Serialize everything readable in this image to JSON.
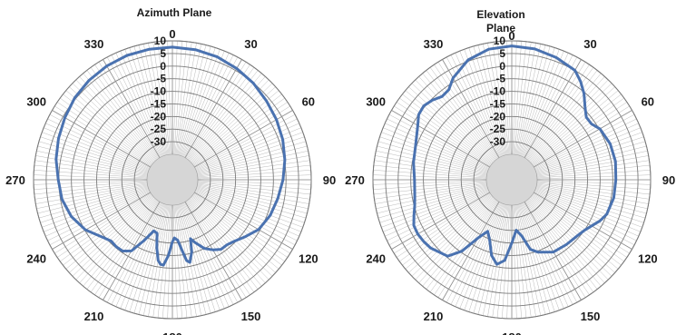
{
  "chart_data": [
    {
      "type": "polar-line",
      "title": "Azimuth Plane",
      "title_lines": [
        "Azimuth Plane"
      ],
      "angle_ticks": [
        "0",
        "30",
        "60",
        "90",
        "120",
        "150",
        "180",
        "210",
        "240",
        "270",
        "300",
        "330"
      ],
      "radial_ticks": [
        "10",
        "5",
        "0",
        "-5",
        "-10",
        "-15",
        "-20",
        "-25",
        "-30"
      ],
      "rlim": [
        -35,
        10
      ],
      "angle_ticks_deg": [
        0,
        30,
        60,
        90,
        120,
        150,
        180,
        210,
        240,
        270,
        300,
        330
      ],
      "radial_rings_db": [
        10,
        5,
        0,
        -5,
        -10,
        -15,
        -20,
        -25,
        -30
      ],
      "grid": true,
      "series_color": "#4a72b0",
      "series": [
        {
          "angles_deg": [
            0,
            10,
            20,
            30,
            40,
            50,
            60,
            70,
            80,
            90,
            100,
            110,
            120,
            128,
            135,
            140,
            145,
            150,
            155,
            160,
            163,
            165,
            168,
            170,
            172,
            175,
            178,
            180,
            183,
            186,
            188,
            190,
            193,
            196,
            200,
            205,
            210,
            215,
            220,
            225,
            230,
            240,
            250,
            260,
            270,
            280,
            290,
            300,
            310,
            320,
            330,
            340,
            350,
            360
          ],
          "values_db": [
            7.5,
            7.3,
            6.8,
            5.9,
            4.9,
            3.6,
            2.6,
            1.5,
            0.2,
            -1.2,
            -2.6,
            -3.8,
            -5.6,
            -8.4,
            -10.5,
            -11.4,
            -11.4,
            -13.0,
            -15.0,
            -18.5,
            -20.6,
            -15.5,
            -11.6,
            -12.5,
            -16.5,
            -21.0,
            -22.0,
            -20.5,
            -15.0,
            -11.0,
            -11.2,
            -12.6,
            -17.5,
            -23.0,
            -23.5,
            -18.5,
            -12.5,
            -10.6,
            -10.4,
            -10.7,
            -9.4,
            -5.3,
            -2.4,
            -0.6,
            0.2,
            1.8,
            3.0,
            4.2,
            5.5,
            6.4,
            7.0,
            7.4,
            7.5,
            7.5
          ]
        }
      ]
    },
    {
      "type": "polar-line",
      "title": "Elevation Plane",
      "title_lines": [
        "Elevation",
        "Plane"
      ],
      "angle_ticks": [
        "0",
        "30",
        "60",
        "90",
        "120",
        "150",
        "180",
        "210",
        "240",
        "270",
        "300",
        "330"
      ],
      "radial_ticks": [
        "10",
        "5",
        "0",
        "-5",
        "-10",
        "-15",
        "-20",
        "-25",
        "-30"
      ],
      "rlim": [
        -35,
        10
      ],
      "angle_ticks_deg": [
        0,
        30,
        60,
        90,
        120,
        150,
        180,
        210,
        240,
        270,
        300,
        330
      ],
      "radial_rings_db": [
        10,
        5,
        0,
        -5,
        -10,
        -15,
        -20,
        -25,
        -30
      ],
      "grid": true,
      "series_color": "#4a72b0",
      "series": [
        {
          "angles_deg": [
            0,
            10,
            20,
            30,
            35,
            40,
            45,
            50,
            55,
            60,
            70,
            80,
            90,
            100,
            110,
            115,
            120,
            125,
            130,
            140,
            150,
            160,
            165,
            170,
            175,
            180,
            185,
            190,
            195,
            200,
            205,
            210,
            215,
            220,
            230,
            235,
            240,
            245,
            250,
            255,
            260,
            270,
            280,
            290,
            300,
            305,
            310,
            315,
            320,
            325,
            330,
            340,
            350,
            360
          ],
          "values_db": [
            8.0,
            7.6,
            6.5,
            5.0,
            2.5,
            -0.5,
            -4.0,
            -6.5,
            -6.5,
            -4.7,
            -3.5,
            -3.3,
            -3.8,
            -4.0,
            -5.0,
            -6.5,
            -8.5,
            -10.0,
            -10.8,
            -11.5,
            -12.0,
            -14.5,
            -16.5,
            -22.5,
            -25.0,
            -20.0,
            -13.0,
            -11.0,
            -14.0,
            -19.5,
            -22.5,
            -18.5,
            -10.5,
            -5.5,
            -3.0,
            -2.4,
            -2.0,
            -2.2,
            -3.8,
            -5.2,
            -6.0,
            -6.5,
            -5.5,
            -4.5,
            -2.0,
            0.0,
            0.5,
            -0.5,
            -2.0,
            -1.5,
            1.5,
            5.5,
            7.5,
            8.0
          ]
        }
      ]
    }
  ]
}
